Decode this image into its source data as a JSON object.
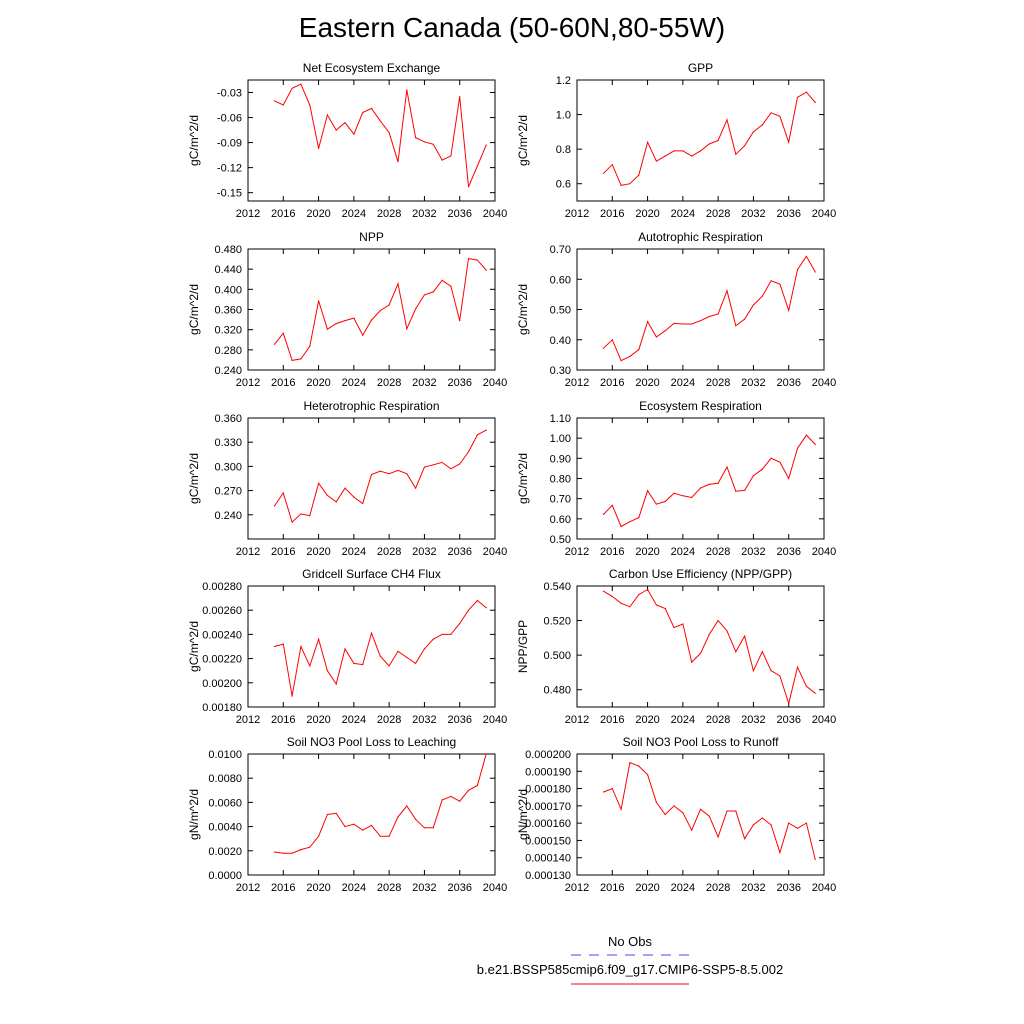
{
  "title": "Eastern Canada (50-60N,80-55W)",
  "legend": {
    "obs_label": "No Obs",
    "obs_color": "#4a4aff",
    "run_label": "b.e21.BSSP585cmip6.f09_g17.CMIP6-SSP5-8.5.002",
    "run_color": "#ff0000"
  },
  "chart_data": [
    {
      "type": "line",
      "title": "Net Ecosystem Exchange",
      "ylabel": "gC/m^2/d",
      "xlim": [
        2012,
        2040
      ],
      "xticks": [
        "2012",
        "2016",
        "2020",
        "2024",
        "2028",
        "2032",
        "2036",
        "2040"
      ],
      "ylim": [
        -0.16,
        -0.015
      ],
      "yticks": [
        "-0.03",
        "-0.06",
        "-0.09",
        "-0.12",
        "-0.15"
      ],
      "series": [
        {
          "x": [
            2015,
            2016,
            2017,
            2018,
            2019,
            2020,
            2021,
            2022,
            2023,
            2024,
            2025,
            2026,
            2027,
            2028,
            2029,
            2030,
            2031,
            2032,
            2033,
            2034,
            2035,
            2036,
            2037,
            2038,
            2039
          ],
          "y": [
            -0.04,
            -0.045,
            -0.025,
            -0.02,
            -0.045,
            -0.097,
            -0.057,
            -0.075,
            -0.066,
            -0.08,
            -0.054,
            -0.049,
            -0.064,
            -0.078,
            -0.113,
            -0.027,
            -0.084,
            -0.089,
            -0.092,
            -0.111,
            -0.106,
            -0.035,
            -0.143,
            -0.118,
            -0.093
          ]
        }
      ]
    },
    {
      "type": "line",
      "title": "GPP",
      "ylabel": "gC/m^2/d",
      "xlim": [
        2012,
        2040
      ],
      "xticks": [
        "2012",
        "2016",
        "2020",
        "2024",
        "2028",
        "2032",
        "2036",
        "2040"
      ],
      "ylim": [
        0.5,
        1.2
      ],
      "yticks": [
        "0.6",
        "0.8",
        "1.0",
        "1.2"
      ],
      "series": [
        {
          "x": [
            2015,
            2016,
            2017,
            2018,
            2019,
            2020,
            2021,
            2022,
            2023,
            2024,
            2025,
            2026,
            2027,
            2028,
            2029,
            2030,
            2031,
            2032,
            2033,
            2034,
            2035,
            2036,
            2037,
            2038,
            2039
          ],
          "y": [
            0.66,
            0.71,
            0.59,
            0.6,
            0.65,
            0.84,
            0.73,
            0.76,
            0.79,
            0.79,
            0.76,
            0.79,
            0.83,
            0.85,
            0.97,
            0.77,
            0.82,
            0.9,
            0.94,
            1.01,
            0.99,
            0.84,
            1.1,
            1.13,
            1.07
          ]
        }
      ]
    },
    {
      "type": "line",
      "title": "NPP",
      "ylabel": "gC/m^2/d",
      "xlim": [
        2012,
        2040
      ],
      "xticks": [
        "2012",
        "2016",
        "2020",
        "2024",
        "2028",
        "2032",
        "2036",
        "2040"
      ],
      "ylim": [
        0.24,
        0.48
      ],
      "yticks": [
        "0.240",
        "0.280",
        "0.320",
        "0.360",
        "0.400",
        "0.440",
        "0.480"
      ],
      "series": [
        {
          "x": [
            2015,
            2016,
            2017,
            2018,
            2019,
            2020,
            2021,
            2022,
            2023,
            2024,
            2025,
            2026,
            2027,
            2028,
            2029,
            2030,
            2031,
            2032,
            2033,
            2034,
            2035,
            2036,
            2037,
            2038,
            2039
          ],
          "y": [
            0.291,
            0.313,
            0.259,
            0.262,
            0.287,
            0.377,
            0.321,
            0.332,
            0.338,
            0.343,
            0.309,
            0.339,
            0.358,
            0.369,
            0.411,
            0.322,
            0.361,
            0.389,
            0.395,
            0.418,
            0.406,
            0.338,
            0.461,
            0.458,
            0.438
          ]
        }
      ]
    },
    {
      "type": "line",
      "title": "Autotrophic Respiration",
      "ylabel": "gC/m^2/d",
      "xlim": [
        2012,
        2040
      ],
      "xticks": [
        "2012",
        "2016",
        "2020",
        "2024",
        "2028",
        "2032",
        "2036",
        "2040"
      ],
      "ylim": [
        0.3,
        0.7
      ],
      "yticks": [
        "0.30",
        "0.40",
        "0.50",
        "0.60",
        "0.70"
      ],
      "series": [
        {
          "x": [
            2015,
            2016,
            2017,
            2018,
            2019,
            2020,
            2021,
            2022,
            2023,
            2024,
            2025,
            2026,
            2027,
            2028,
            2029,
            2030,
            2031,
            2032,
            2033,
            2034,
            2035,
            2036,
            2037,
            2038,
            2039
          ],
          "y": [
            0.372,
            0.4,
            0.331,
            0.345,
            0.367,
            0.46,
            0.409,
            0.43,
            0.454,
            0.452,
            0.452,
            0.463,
            0.477,
            0.485,
            0.562,
            0.446,
            0.468,
            0.515,
            0.544,
            0.595,
            0.584,
            0.497,
            0.632,
            0.676,
            0.624
          ]
        }
      ]
    },
    {
      "type": "line",
      "title": "Heterotrophic Respiration",
      "ylabel": "gC/m^2/d",
      "xlim": [
        2012,
        2040
      ],
      "xticks": [
        "2012",
        "2016",
        "2020",
        "2024",
        "2028",
        "2032",
        "2036",
        "2040"
      ],
      "ylim": [
        0.21,
        0.36
      ],
      "yticks": [
        "0.240",
        "0.270",
        "0.300",
        "0.330",
        "0.360"
      ],
      "series": [
        {
          "x": [
            2015,
            2016,
            2017,
            2018,
            2019,
            2020,
            2021,
            2022,
            2023,
            2024,
            2025,
            2026,
            2027,
            2028,
            2029,
            2030,
            2031,
            2032,
            2033,
            2034,
            2035,
            2036,
            2037,
            2038,
            2039
          ],
          "y": [
            0.251,
            0.267,
            0.231,
            0.241,
            0.239,
            0.279,
            0.264,
            0.256,
            0.273,
            0.262,
            0.254,
            0.29,
            0.294,
            0.291,
            0.295,
            0.291,
            0.273,
            0.299,
            0.302,
            0.305,
            0.297,
            0.303,
            0.318,
            0.339,
            0.345
          ]
        }
      ]
    },
    {
      "type": "line",
      "title": "Ecosystem Respiration",
      "ylabel": "gC/m^2/d",
      "xlim": [
        2012,
        2040
      ],
      "xticks": [
        "2012",
        "2016",
        "2020",
        "2024",
        "2028",
        "2032",
        "2036",
        "2040"
      ],
      "ylim": [
        0.5,
        1.1
      ],
      "yticks": [
        "0.50",
        "0.60",
        "0.70",
        "0.80",
        "0.90",
        "1.00",
        "1.10"
      ],
      "series": [
        {
          "x": [
            2015,
            2016,
            2017,
            2018,
            2019,
            2020,
            2021,
            2022,
            2023,
            2024,
            2025,
            2026,
            2027,
            2028,
            2029,
            2030,
            2031,
            2032,
            2033,
            2034,
            2035,
            2036,
            2037,
            2038,
            2039
          ],
          "y": [
            0.622,
            0.667,
            0.562,
            0.586,
            0.606,
            0.739,
            0.673,
            0.686,
            0.727,
            0.714,
            0.706,
            0.753,
            0.771,
            0.776,
            0.857,
            0.737,
            0.741,
            0.814,
            0.846,
            0.9,
            0.881,
            0.8,
            0.95,
            1.015,
            0.969
          ]
        }
      ]
    },
    {
      "type": "line",
      "title": "Gridcell Surface CH4 Flux",
      "ylabel": "gC/m^2/d",
      "xlim": [
        2012,
        2040
      ],
      "xticks": [
        "2012",
        "2016",
        "2020",
        "2024",
        "2028",
        "2032",
        "2036",
        "2040"
      ],
      "ylim": [
        0.0018,
        0.0028
      ],
      "yticks": [
        "0.00180",
        "0.00200",
        "0.00220",
        "0.00240",
        "0.00260",
        "0.00280"
      ],
      "series": [
        {
          "x": [
            2015,
            2016,
            2017,
            2018,
            2019,
            2020,
            2021,
            2022,
            2023,
            2024,
            2025,
            2026,
            2027,
            2028,
            2029,
            2030,
            2031,
            2032,
            2033,
            2034,
            2035,
            2036,
            2037,
            2038,
            2039
          ],
          "y": [
            0.0023,
            0.00232,
            0.00189,
            0.0023,
            0.00214,
            0.00236,
            0.0021,
            0.00199,
            0.00228,
            0.00216,
            0.00215,
            0.00241,
            0.00222,
            0.00214,
            0.00226,
            0.00221,
            0.00216,
            0.00228,
            0.00236,
            0.0024,
            0.0024,
            0.00249,
            0.0026,
            0.00268,
            0.00262
          ]
        }
      ]
    },
    {
      "type": "line",
      "title": "Carbon Use Efficiency (NPP/GPP)",
      "ylabel": "NPP/GPP",
      "xlim": [
        2012,
        2040
      ],
      "xticks": [
        "2012",
        "2016",
        "2020",
        "2024",
        "2028",
        "2032",
        "2036",
        "2040"
      ],
      "ylim": [
        0.47,
        0.54
      ],
      "yticks": [
        "0.480",
        "0.500",
        "0.520",
        "0.540"
      ],
      "series": [
        {
          "x": [
            2015,
            2016,
            2017,
            2018,
            2019,
            2020,
            2021,
            2022,
            2023,
            2024,
            2025,
            2026,
            2027,
            2028,
            2029,
            2030,
            2031,
            2032,
            2033,
            2034,
            2035,
            2036,
            2037,
            2038,
            2039
          ],
          "y": [
            0.537,
            0.534,
            0.53,
            0.528,
            0.535,
            0.538,
            0.529,
            0.527,
            0.516,
            0.518,
            0.496,
            0.501,
            0.512,
            0.52,
            0.514,
            0.502,
            0.511,
            0.491,
            0.502,
            0.491,
            0.488,
            0.472,
            0.493,
            0.482,
            0.478
          ]
        }
      ]
    },
    {
      "type": "line",
      "title": "Soil NO3 Pool Loss to Leaching",
      "ylabel": "gN/m^2/d",
      "xlim": [
        2012,
        2040
      ],
      "xticks": [
        "2012",
        "2016",
        "2020",
        "2024",
        "2028",
        "2032",
        "2036",
        "2040"
      ],
      "ylim": [
        0.0,
        0.01
      ],
      "yticks": [
        "0.0000",
        "0.0020",
        "0.0040",
        "0.0060",
        "0.0080",
        "0.0100"
      ],
      "series": [
        {
          "x": [
            2015,
            2016,
            2017,
            2018,
            2019,
            2020,
            2021,
            2022,
            2023,
            2024,
            2025,
            2026,
            2027,
            2028,
            2029,
            2030,
            2031,
            2032,
            2033,
            2034,
            2035,
            2036,
            2037,
            2038,
            2039
          ],
          "y": [
            0.0019,
            0.0018,
            0.0018,
            0.0021,
            0.0023,
            0.0032,
            0.005,
            0.0051,
            0.004,
            0.0042,
            0.0037,
            0.0041,
            0.0032,
            0.0032,
            0.0048,
            0.0057,
            0.0046,
            0.0039,
            0.0039,
            0.0062,
            0.0065,
            0.0061,
            0.007,
            0.0074,
            0.01
          ]
        }
      ]
    },
    {
      "type": "line",
      "title": "Soil NO3 Pool Loss to Runoff",
      "ylabel": "gN/m^2/d",
      "xlim": [
        2012,
        2040
      ],
      "xticks": [
        "2012",
        "2016",
        "2020",
        "2024",
        "2028",
        "2032",
        "2036",
        "2040"
      ],
      "ylim": [
        0.00013,
        0.0002
      ],
      "yticks": [
        "0.000130",
        "0.000140",
        "0.000150",
        "0.000160",
        "0.000170",
        "0.000180",
        "0.000190",
        "0.000200"
      ],
      "series": [
        {
          "x": [
            2015,
            2016,
            2017,
            2018,
            2019,
            2020,
            2021,
            2022,
            2023,
            2024,
            2025,
            2026,
            2027,
            2028,
            2029,
            2030,
            2031,
            2032,
            2033,
            2034,
            2035,
            2036,
            2037,
            2038,
            2039
          ],
          "y": [
            0.000178,
            0.00018,
            0.000168,
            0.000195,
            0.000193,
            0.000188,
            0.000172,
            0.000165,
            0.00017,
            0.000166,
            0.000156,
            0.000168,
            0.000164,
            0.000152,
            0.000167,
            0.000167,
            0.000151,
            0.000159,
            0.000163,
            0.000159,
            0.000143,
            0.00016,
            0.000157,
            0.00016,
            0.000139
          ]
        }
      ]
    }
  ]
}
